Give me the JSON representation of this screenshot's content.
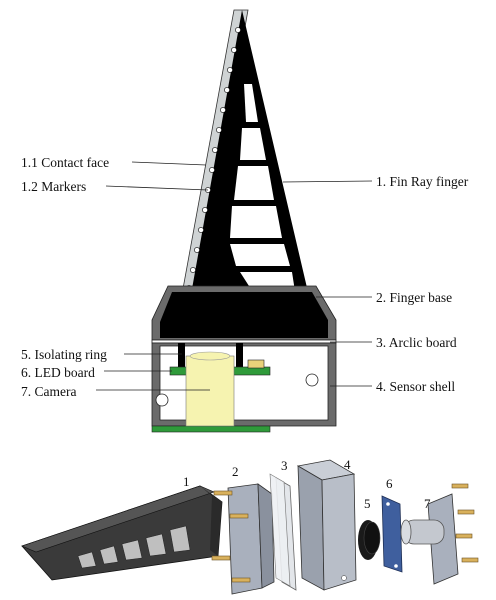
{
  "labels": {
    "contact_face": "1.1 Contact face",
    "markers": "1.2 Markers",
    "fin_ray_finger": "1. Fin Ray finger",
    "finger_base": "2. Finger base",
    "arclic_board": "3. Arclic board",
    "isolating_ring": "5. Isolating ring",
    "led_board": "6. LED board",
    "camera": "7. Camera",
    "sensor_shell": "4. Sensor shell"
  },
  "exploded_numbers": [
    "1",
    "2",
    "3",
    "4",
    "5",
    "6",
    "7"
  ],
  "colors": {
    "finger": "#000000",
    "contact_face": "#cfd3d4",
    "shell_gray": "#6b6b6b",
    "led_green": "#2f9a3a",
    "camera_yellow": "#f6f3b0",
    "exploded_finger": "#3a3a3a",
    "plate": "#a9b0bd",
    "clear_plate": "#e3e6ea",
    "pcb_blue": "#3f5f9e",
    "screw_gold": "#d9b15c"
  }
}
